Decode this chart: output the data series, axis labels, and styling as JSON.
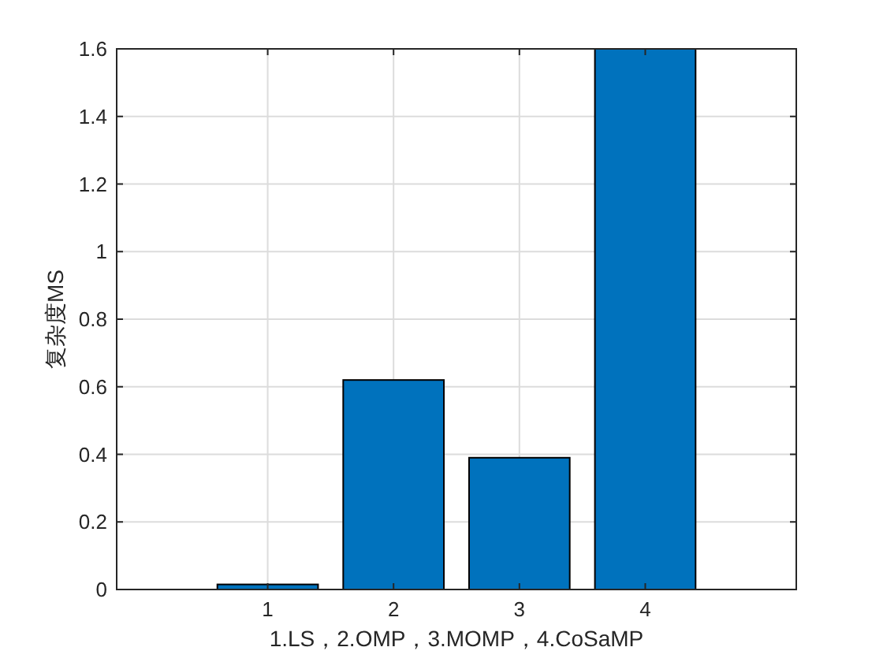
{
  "chart_data": {
    "type": "bar",
    "xlabel": "1.LS，2.OMP，3.MOMP，4.CoSaMP",
    "ylabel": "复杂度MS",
    "x": [
      1,
      2,
      3,
      4
    ],
    "values": [
      0.015,
      0.62,
      0.39,
      1.6
    ],
    "color": "#0072bd",
    "xlim": [
      -0.2,
      5.2
    ],
    "xticks": [
      1,
      2,
      3,
      4
    ],
    "ylim": [
      0,
      1.6
    ],
    "yticks": [
      0,
      0.2,
      0.4,
      0.6,
      0.8,
      1,
      1.2,
      1.4,
      1.6
    ],
    "grid": true
  }
}
